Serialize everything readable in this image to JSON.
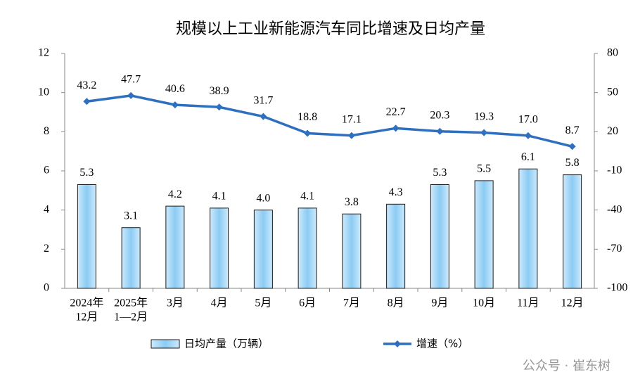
{
  "chart_data": {
    "type": "bar-line",
    "title": "规模以上工业新能源汽车同比增速及日均产量",
    "categories": [
      [
        "2024年",
        "12月"
      ],
      [
        "2025年",
        "1—2月"
      ],
      [
        "3月"
      ],
      [
        "4月"
      ],
      [
        "5月"
      ],
      [
        "6月"
      ],
      [
        "7月"
      ],
      [
        "8月"
      ],
      [
        "9月"
      ],
      [
        "10月"
      ],
      [
        "11月"
      ],
      [
        "12月"
      ]
    ],
    "series": [
      {
        "name": "日均产量（万辆）",
        "type": "bar",
        "color": "#a6d8f7",
        "values": [
          5.3,
          3.1,
          4.2,
          4.1,
          4.0,
          4.1,
          3.8,
          4.3,
          5.3,
          5.5,
          6.1,
          5.8
        ],
        "value_labels": [
          "5.3",
          "3.1",
          "4.2",
          "4.1",
          "4.0",
          "4.1",
          "3.8",
          "4.3",
          "5.3",
          "5.5",
          "6.1",
          "5.8"
        ]
      },
      {
        "name": "增速（%）",
        "type": "line",
        "axis": "y2",
        "color": "#2e6fbf",
        "values": [
          43.2,
          47.7,
          40.6,
          38.9,
          31.7,
          18.8,
          17.1,
          22.7,
          20.3,
          19.3,
          17.0,
          8.7
        ],
        "value_labels": [
          "43.2",
          "47.7",
          "40.6",
          "38.9",
          "31.7",
          "18.8",
          "17.1",
          "22.7",
          "20.3",
          "19.3",
          "17.0",
          "8.7"
        ]
      }
    ],
    "ylim": [
      0,
      12
    ],
    "yticks": [
      0,
      2,
      4,
      6,
      8,
      10,
      12
    ],
    "y2lim": [
      -100,
      80
    ],
    "y2ticks": [
      -100,
      -70,
      -40,
      -10,
      20,
      50,
      80
    ],
    "watermark": "公众号 · 崔东树"
  }
}
